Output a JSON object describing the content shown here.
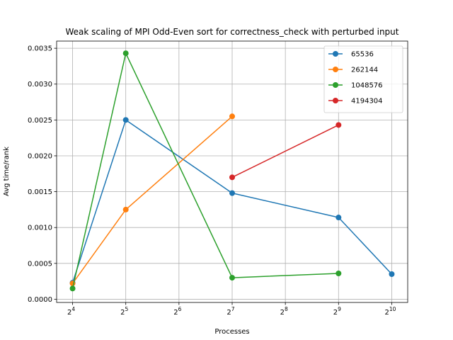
{
  "chart_data": {
    "type": "line",
    "title": "Weak scaling of MPI Odd-Even sort for correctness_check with perturbed input",
    "xlabel": "Processes",
    "ylabel": "Avg time/rank",
    "xscale": "log2",
    "x_tick_exponents": [
      4,
      5,
      6,
      7,
      8,
      9,
      10
    ],
    "x_tick_base": "2",
    "ylim": [
      -4.5e-05,
      0.0036
    ],
    "yticks": [
      0.0,
      0.0005,
      0.001,
      0.0015,
      0.002,
      0.0025,
      0.003,
      0.0035
    ],
    "ytick_labels": [
      "0.0000",
      "0.0005",
      "0.0010",
      "0.0015",
      "0.0020",
      "0.0025",
      "0.0030",
      "0.0035"
    ],
    "grid": true,
    "legend_position": "upper right",
    "series": [
      {
        "name": "65536",
        "color": "#1f77b4",
        "x": [
          16,
          32,
          128,
          512,
          1024
        ],
        "values": [
          0.00023,
          0.0025,
          0.00148,
          0.00114,
          0.00035
        ]
      },
      {
        "name": "262144",
        "color": "#ff7f0e",
        "x": [
          16,
          32,
          128
        ],
        "values": [
          0.00022,
          0.00125,
          0.00255
        ]
      },
      {
        "name": "1048576",
        "color": "#2ca02c",
        "x": [
          16,
          32,
          128,
          512
        ],
        "values": [
          0.00015,
          0.00343,
          0.0003,
          0.00036
        ]
      },
      {
        "name": "4194304",
        "color": "#d62728",
        "x": [
          128,
          512
        ],
        "values": [
          0.0017,
          0.00243
        ]
      }
    ]
  }
}
